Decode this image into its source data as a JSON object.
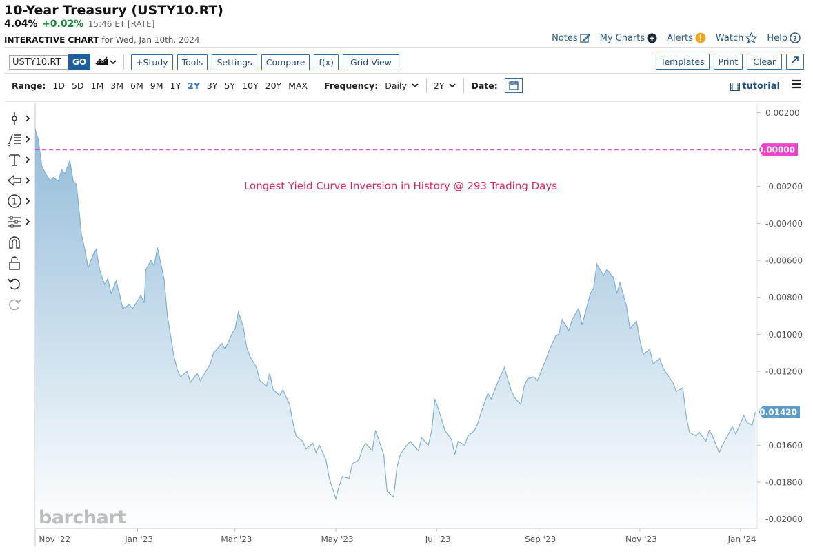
{
  "header": {
    "title": "10-Year Treasury (USTY10.RT)",
    "last": "4.04%",
    "change": "+0.02%",
    "time": "15:46 ET [RATE]",
    "chart_label": "INTERACTIVE CHART",
    "date_text": "for Wed, Jan 10th, 2024"
  },
  "toplinks": {
    "notes": "Notes",
    "mycharts": "My Charts",
    "alerts": "Alerts",
    "watch": "Watch",
    "help": "Help"
  },
  "toolbar": {
    "symbol_value": "USTY10.RT",
    "go": "GO",
    "study": "+Study",
    "tools": "Tools",
    "settings": "Settings",
    "compare": "Compare",
    "fx": "f(x)",
    "gridview": "Grid View",
    "templates": "Templates",
    "print": "Print",
    "clear": "Clear"
  },
  "rangebar": {
    "range_label": "Range:",
    "ranges": [
      "1D",
      "5D",
      "1M",
      "3M",
      "6M",
      "9M",
      "1Y",
      "2Y",
      "3Y",
      "5Y",
      "10Y",
      "20Y",
      "MAX"
    ],
    "active_range": "2Y",
    "frequency_label": "Frequency:",
    "frequency_value": "Daily",
    "period_value": "2Y",
    "date_label": "Date:",
    "tutorial": "tutorial"
  },
  "colors": {
    "accent": "#1f5f99",
    "line": "#7fb0d2",
    "fill_top": "#9fc4dd",
    "zero_line": "#ee44cc",
    "annotation": "#e0245e",
    "last_tag": "#5b9dc6"
  },
  "watermark": "barchart",
  "chart_data": {
    "type": "area",
    "x_tick_labels": [
      "Nov '22",
      "Jan '23",
      "Mar '23",
      "May '23",
      "Jul '23",
      "Sep '23",
      "Nov '23",
      "Jan '24"
    ],
    "y_tick_labels": [
      "0.00200",
      "-0.00200",
      "-0.00400",
      "-0.00600",
      "-0.00800",
      "-0.01000",
      "-0.01200",
      "-0.01600",
      "-0.01800",
      "-0.02000"
    ],
    "ylim": [
      -0.0205,
      0.0025
    ],
    "reference_line": {
      "value": 0.0,
      "label": "0.00000"
    },
    "last_value_label": "-0.01420",
    "last_value": -0.0142,
    "annotation": "Longest Yield Curve Inversion in History @ 293 Trading Days",
    "x_range": [
      "2022-10-31",
      "2024-01-11"
    ],
    "points": [
      [
        "2022-10-31",
        0.0011
      ],
      [
        "2022-11-02",
        0.0005
      ],
      [
        "2022-11-04",
        -0.0009
      ],
      [
        "2022-11-07",
        -0.0014
      ],
      [
        "2022-11-09",
        -0.0017
      ],
      [
        "2022-11-11",
        -0.0015
      ],
      [
        "2022-11-14",
        -0.0017
      ],
      [
        "2022-11-16",
        -0.0011
      ],
      [
        "2022-11-18",
        -0.0013
      ],
      [
        "2022-11-21",
        -0.0006
      ],
      [
        "2022-11-23",
        -0.0017
      ],
      [
        "2022-11-25",
        -0.0019
      ],
      [
        "2022-11-28",
        -0.0046
      ],
      [
        "2022-11-30",
        -0.0054
      ],
      [
        "2022-12-02",
        -0.0064
      ],
      [
        "2022-12-05",
        -0.0057
      ],
      [
        "2022-12-07",
        -0.0054
      ],
      [
        "2022-12-09",
        -0.0065
      ],
      [
        "2022-12-12",
        -0.0073
      ],
      [
        "2022-12-14",
        -0.007
      ],
      [
        "2022-12-16",
        -0.0078
      ],
      [
        "2022-12-19",
        -0.0071
      ],
      [
        "2022-12-21",
        -0.0078
      ],
      [
        "2022-12-23",
        -0.0086
      ],
      [
        "2022-12-27",
        -0.0084
      ],
      [
        "2022-12-29",
        -0.0086
      ],
      [
        "2023-01-03",
        -0.0079
      ],
      [
        "2023-01-05",
        -0.0083
      ],
      [
        "2023-01-06",
        -0.0065
      ],
      [
        "2023-01-09",
        -0.006
      ],
      [
        "2023-01-11",
        -0.0063
      ],
      [
        "2023-01-13",
        -0.0053
      ],
      [
        "2023-01-17",
        -0.007
      ],
      [
        "2023-01-19",
        -0.009
      ],
      [
        "2023-01-23",
        -0.0112
      ],
      [
        "2023-01-25",
        -0.0119
      ],
      [
        "2023-01-27",
        -0.0123
      ],
      [
        "2023-01-31",
        -0.012
      ],
      [
        "2023-02-02",
        -0.0126
      ],
      [
        "2023-02-06",
        -0.0121
      ],
      [
        "2023-02-08",
        -0.0125
      ],
      [
        "2023-02-10",
        -0.0122
      ],
      [
        "2023-02-14",
        -0.0116
      ],
      [
        "2023-02-16",
        -0.011
      ],
      [
        "2023-02-21",
        -0.0105
      ],
      [
        "2023-02-23",
        -0.0108
      ],
      [
        "2023-02-27",
        -0.01
      ],
      [
        "2023-03-01",
        -0.0097
      ],
      [
        "2023-03-03",
        -0.0088
      ],
      [
        "2023-03-06",
        -0.0096
      ],
      [
        "2023-03-08",
        -0.0107
      ],
      [
        "2023-03-10",
        -0.0112
      ],
      [
        "2023-03-14",
        -0.0118
      ],
      [
        "2023-03-16",
        -0.0125
      ],
      [
        "2023-03-20",
        -0.0128
      ],
      [
        "2023-03-22",
        -0.0121
      ],
      [
        "2023-03-24",
        -0.013
      ],
      [
        "2023-03-28",
        -0.0133
      ],
      [
        "2023-03-30",
        -0.013
      ],
      [
        "2023-04-03",
        -0.0138
      ],
      [
        "2023-04-05",
        -0.0148
      ],
      [
        "2023-04-07",
        -0.0155
      ],
      [
        "2023-04-11",
        -0.0158
      ],
      [
        "2023-04-13",
        -0.0162
      ],
      [
        "2023-04-17",
        -0.0159
      ],
      [
        "2023-04-19",
        -0.0164
      ],
      [
        "2023-04-21",
        -0.016
      ],
      [
        "2023-04-25",
        -0.0168
      ],
      [
        "2023-04-27",
        -0.0178
      ],
      [
        "2023-05-01",
        -0.0189
      ],
      [
        "2023-05-03",
        -0.0182
      ],
      [
        "2023-05-05",
        -0.0177
      ],
      [
        "2023-05-09",
        -0.0178
      ],
      [
        "2023-05-11",
        -0.017
      ],
      [
        "2023-05-15",
        -0.0168
      ],
      [
        "2023-05-17",
        -0.0162
      ],
      [
        "2023-05-19",
        -0.0159
      ],
      [
        "2023-05-23",
        -0.0163
      ],
      [
        "2023-05-25",
        -0.0152
      ],
      [
        "2023-05-30",
        -0.0165
      ],
      [
        "2023-06-01",
        -0.0185
      ],
      [
        "2023-06-05",
        -0.0188
      ],
      [
        "2023-06-07",
        -0.0172
      ],
      [
        "2023-06-09",
        -0.0165
      ],
      [
        "2023-06-13",
        -0.016
      ],
      [
        "2023-06-15",
        -0.0158
      ],
      [
        "2023-06-20",
        -0.0163
      ],
      [
        "2023-06-22",
        -0.0156
      ],
      [
        "2023-06-26",
        -0.016
      ],
      [
        "2023-06-28",
        -0.0152
      ],
      [
        "2023-06-30",
        -0.0135
      ],
      [
        "2023-07-03",
        -0.0143
      ],
      [
        "2023-07-06",
        -0.0152
      ],
      [
        "2023-07-10",
        -0.0157
      ],
      [
        "2023-07-12",
        -0.0165
      ],
      [
        "2023-07-14",
        -0.0158
      ],
      [
        "2023-07-18",
        -0.016
      ],
      [
        "2023-07-20",
        -0.0155
      ],
      [
        "2023-07-24",
        -0.0152
      ],
      [
        "2023-07-26",
        -0.0148
      ],
      [
        "2023-07-28",
        -0.0142
      ],
      [
        "2023-08-01",
        -0.0132
      ],
      [
        "2023-08-03",
        -0.0135
      ],
      [
        "2023-08-07",
        -0.0126
      ],
      [
        "2023-08-09",
        -0.0122
      ],
      [
        "2023-08-11",
        -0.0118
      ],
      [
        "2023-08-15",
        -0.013
      ],
      [
        "2023-08-17",
        -0.0134
      ],
      [
        "2023-08-21",
        -0.0138
      ],
      [
        "2023-08-23",
        -0.0128
      ],
      [
        "2023-08-25",
        -0.0124
      ],
      [
        "2023-08-29",
        -0.0123
      ],
      [
        "2023-08-31",
        -0.0125
      ],
      [
        "2023-09-05",
        -0.0114
      ],
      [
        "2023-09-07",
        -0.0109
      ],
      [
        "2023-09-11",
        -0.0101
      ],
      [
        "2023-09-13",
        -0.01
      ],
      [
        "2023-09-15",
        -0.0092
      ],
      [
        "2023-09-19",
        -0.0098
      ],
      [
        "2023-09-21",
        -0.0092
      ],
      [
        "2023-09-25",
        -0.0086
      ],
      [
        "2023-09-27",
        -0.0095
      ],
      [
        "2023-10-02",
        -0.0078
      ],
      [
        "2023-10-04",
        -0.0075
      ],
      [
        "2023-10-06",
        -0.0062
      ],
      [
        "2023-10-10",
        -0.0068
      ],
      [
        "2023-10-12",
        -0.0065
      ],
      [
        "2023-10-16",
        -0.0069
      ],
      [
        "2023-10-18",
        -0.0078
      ],
      [
        "2023-10-20",
        -0.0072
      ],
      [
        "2023-10-24",
        -0.0085
      ],
      [
        "2023-10-26",
        -0.0097
      ],
      [
        "2023-10-30",
        -0.0093
      ],
      [
        "2023-11-01",
        -0.0103
      ],
      [
        "2023-11-03",
        -0.0111
      ],
      [
        "2023-11-07",
        -0.0108
      ],
      [
        "2023-11-09",
        -0.0116
      ],
      [
        "2023-11-13",
        -0.0113
      ],
      [
        "2023-11-15",
        -0.0118
      ],
      [
        "2023-11-17",
        -0.0121
      ],
      [
        "2023-11-21",
        -0.0126
      ],
      [
        "2023-11-23",
        -0.0131
      ],
      [
        "2023-11-27",
        -0.0129
      ],
      [
        "2023-11-29",
        -0.0144
      ],
      [
        "2023-12-01",
        -0.0153
      ],
      [
        "2023-12-05",
        -0.0155
      ],
      [
        "2023-12-07",
        -0.0153
      ],
      [
        "2023-12-11",
        -0.0158
      ],
      [
        "2023-12-13",
        -0.0152
      ],
      [
        "2023-12-15",
        -0.0155
      ],
      [
        "2023-12-19",
        -0.0164
      ],
      [
        "2023-12-21",
        -0.016
      ],
      [
        "2023-12-27",
        -0.015
      ],
      [
        "2023-12-29",
        -0.0154
      ],
      [
        "2024-01-03",
        -0.0144
      ],
      [
        "2024-01-05",
        -0.0148
      ],
      [
        "2024-01-08",
        -0.0149
      ],
      [
        "2024-01-10",
        -0.0142
      ]
    ]
  }
}
